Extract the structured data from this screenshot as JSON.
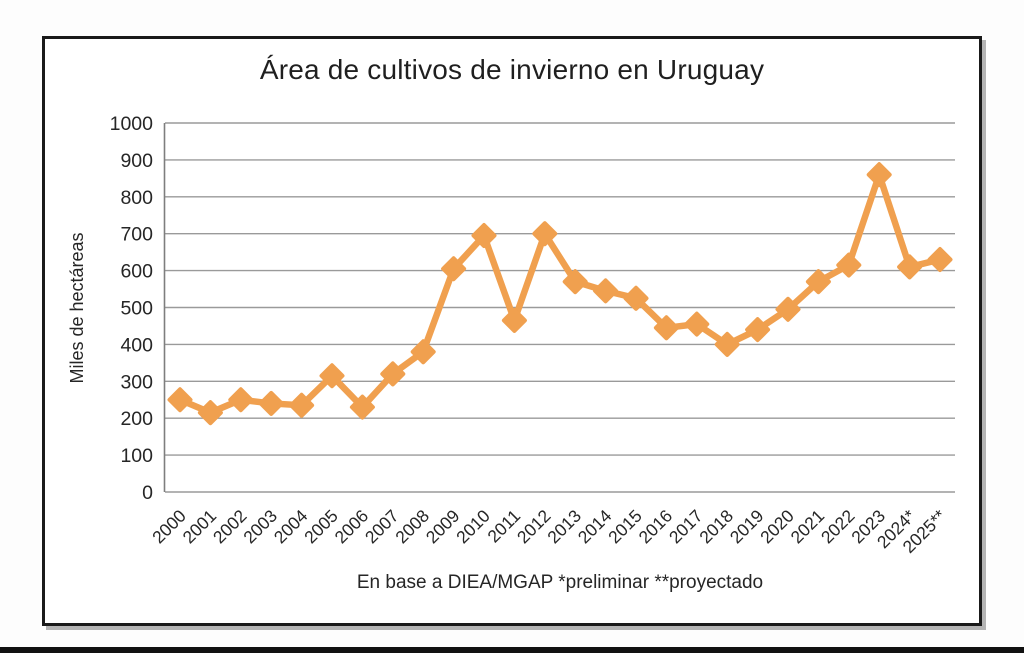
{
  "page": {
    "title": "Área de cultivos de invierno en Uruguay",
    "ylabel": "Miles de hectáreas",
    "caption": "En base a DIEA/MGAP *preliminar **proyectado"
  },
  "chart_data": {
    "type": "line",
    "title": "Área de cultivos de invierno en Uruguay",
    "ylabel": "Miles de hectáreas",
    "caption": "En base a DIEA/MGAP *preliminar **proyectado",
    "categories": [
      "2000",
      "2001",
      "2002",
      "2003",
      "2004",
      "2005",
      "2006",
      "2007",
      "2008",
      "2009",
      "2010",
      "2011",
      "2012",
      "2013",
      "2014",
      "2015",
      "2016",
      "2017",
      "2018",
      "2019",
      "2020",
      "2021",
      "2022",
      "2023",
      "2024*",
      "2025**"
    ],
    "values": [
      250,
      215,
      250,
      240,
      235,
      315,
      230,
      320,
      380,
      605,
      695,
      465,
      700,
      570,
      545,
      525,
      445,
      455,
      400,
      440,
      495,
      570,
      615,
      860,
      610,
      630
    ],
    "ylim": [
      0,
      1000
    ],
    "ytick_step": 100,
    "yticks": [
      0,
      100,
      200,
      300,
      400,
      500,
      600,
      700,
      800,
      900,
      1000
    ],
    "grid": true,
    "legend_position": "none",
    "marker": "diamond",
    "colors": {
      "series_line": "#F0A04F",
      "marker_fill": "#F0A04F",
      "grid_line": "#9A9A9A",
      "axis_line": "#7E7E7E",
      "tick_text": "#262626",
      "frame_border": "#1A1A1A"
    }
  }
}
